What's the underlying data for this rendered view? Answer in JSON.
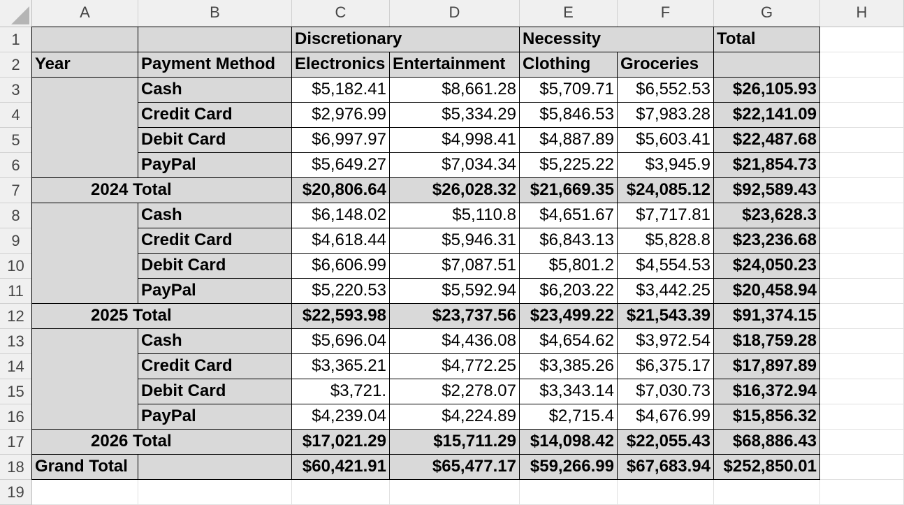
{
  "columns": [
    "A",
    "B",
    "C",
    "D",
    "E",
    "F",
    "G",
    "H"
  ],
  "rows": [
    "1",
    "2",
    "3",
    "4",
    "5",
    "6",
    "7",
    "8",
    "9",
    "10",
    "11",
    "12",
    "13",
    "14",
    "15",
    "16",
    "17",
    "18",
    "19"
  ],
  "pivot": {
    "group_headers": {
      "discretionary": "Discretionary",
      "necessity": "Necessity",
      "total": "Total"
    },
    "row_labels": {
      "year": "Year",
      "payment_method": "Payment Method"
    },
    "categories": [
      "Electronics",
      "Entertainment",
      "Clothing",
      "Groceries"
    ],
    "years": [
      {
        "total_label": "2024 Total",
        "rows": [
          {
            "method": "Cash",
            "values": [
              "$5,182.41",
              "$8,661.28",
              "$5,709.71",
              "$6,552.53"
            ],
            "total": "$26,105.93"
          },
          {
            "method": "Credit Card",
            "values": [
              "$2,976.99",
              "$5,334.29",
              "$5,846.53",
              "$7,983.28"
            ],
            "total": "$22,141.09"
          },
          {
            "method": "Debit Card",
            "values": [
              "$6,997.97",
              "$4,998.41",
              "$4,887.89",
              "$5,603.41"
            ],
            "total": "$22,487.68"
          },
          {
            "method": "PayPal",
            "values": [
              "$5,649.27",
              "$7,034.34",
              "$5,225.22",
              "$3,945.9"
            ],
            "total": "$21,854.73"
          }
        ],
        "total_values": [
          "$20,806.64",
          "$26,028.32",
          "$21,669.35",
          "$24,085.12"
        ],
        "total_total": "$92,589.43"
      },
      {
        "total_label": "2025 Total",
        "rows": [
          {
            "method": "Cash",
            "values": [
              "$6,148.02",
              "$5,110.8",
              "$4,651.67",
              "$7,717.81"
            ],
            "total": "$23,628.3"
          },
          {
            "method": "Credit Card",
            "values": [
              "$4,618.44",
              "$5,946.31",
              "$6,843.13",
              "$5,828.8"
            ],
            "total": "$23,236.68"
          },
          {
            "method": "Debit Card",
            "values": [
              "$6,606.99",
              "$7,087.51",
              "$5,801.2",
              "$4,554.53"
            ],
            "total": "$24,050.23"
          },
          {
            "method": "PayPal",
            "values": [
              "$5,220.53",
              "$5,592.94",
              "$6,203.22",
              "$3,442.25"
            ],
            "total": "$20,458.94"
          }
        ],
        "total_values": [
          "$22,593.98",
          "$23,737.56",
          "$23,499.22",
          "$21,543.39"
        ],
        "total_total": "$91,374.15"
      },
      {
        "total_label": "2026 Total",
        "rows": [
          {
            "method": "Cash",
            "values": [
              "$5,696.04",
              "$4,436.08",
              "$4,654.62",
              "$3,972.54"
            ],
            "total": "$18,759.28"
          },
          {
            "method": "Credit Card",
            "values": [
              "$3,365.21",
              "$4,772.25",
              "$3,385.26",
              "$6,375.17"
            ],
            "total": "$17,897.89"
          },
          {
            "method": "Debit Card",
            "values": [
              "$3,721.",
              "$2,278.07",
              "$3,343.14",
              "$7,030.73"
            ],
            "total": "$16,372.94"
          },
          {
            "method": "PayPal",
            "values": [
              "$4,239.04",
              "$4,224.89",
              "$2,715.4",
              "$4,676.99"
            ],
            "total": "$15,856.32"
          }
        ],
        "total_values": [
          "$17,021.29",
          "$15,711.29",
          "$14,098.42",
          "$22,055.43"
        ],
        "total_total": "$68,886.43"
      }
    ],
    "grand_total": {
      "label": "Grand Total",
      "values": [
        "$60,421.91",
        "$65,477.17",
        "$59,266.99",
        "$67,683.94"
      ],
      "total": "$252,850.01"
    }
  },
  "colors": {
    "header_fill": "#d9d9d9",
    "gridline": "#e1e1e1",
    "border": "#000000"
  }
}
